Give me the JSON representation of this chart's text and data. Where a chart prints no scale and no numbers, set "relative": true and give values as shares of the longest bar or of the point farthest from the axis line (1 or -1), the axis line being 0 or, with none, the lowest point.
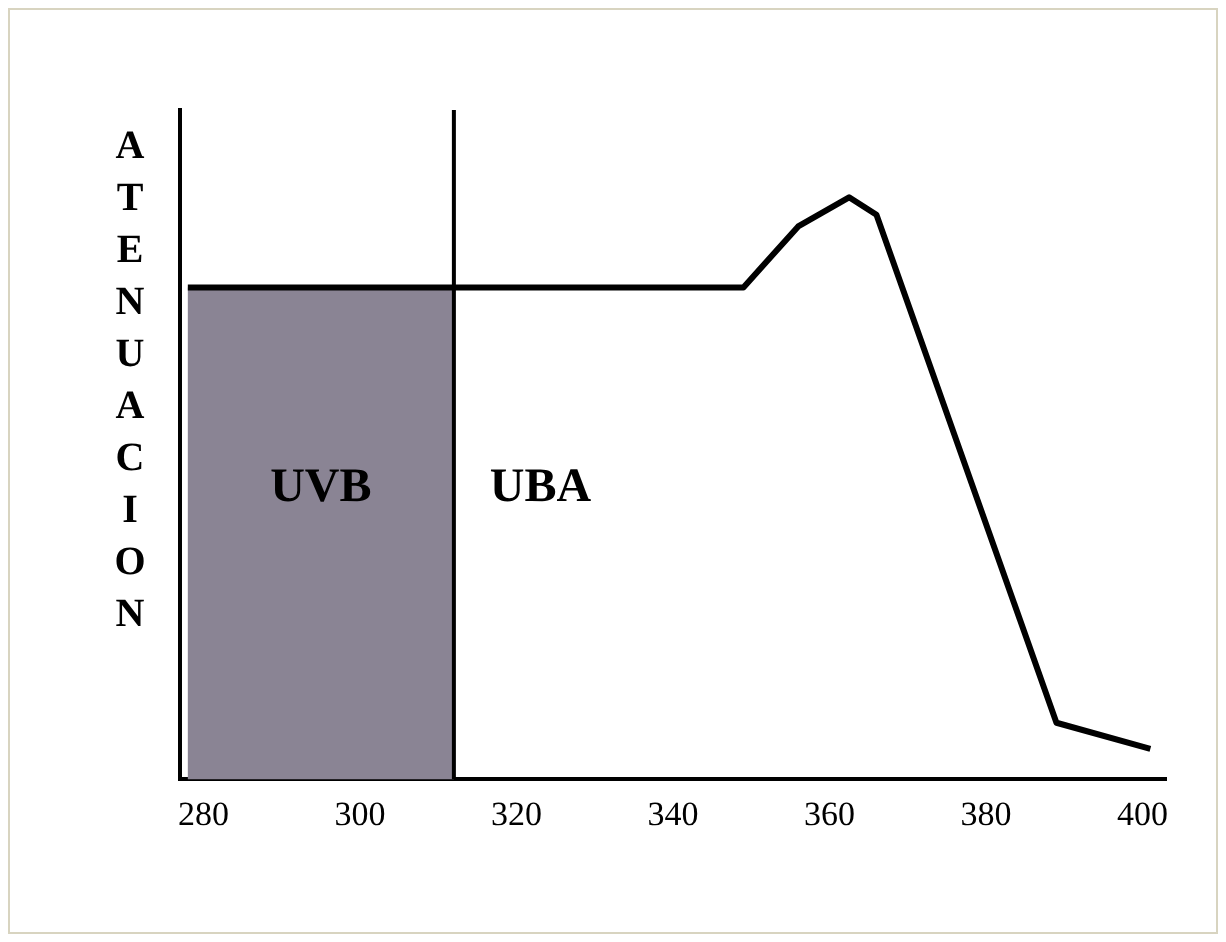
{
  "chart_data": {
    "type": "line",
    "ylabel": "ATENUACION",
    "relative": true,
    "x": [
      278,
      349,
      356,
      362.5,
      366,
      389,
      401
    ],
    "series": [
      {
        "color": "#000000",
        "values": [
          0.845,
          0.845,
          0.95,
          1,
          0.97,
          0.097,
          0.052
        ]
      }
    ],
    "xlim": [
      277,
      403
    ],
    "xticks": [
      280,
      300,
      320,
      340,
      360,
      380,
      400
    ],
    "grid": false,
    "legend": false,
    "marker": "none",
    "line_style": "solid",
    "bands": [
      {
        "axis": "x",
        "from": 278,
        "to": 312,
        "label": "UVB",
        "color": "#8a8494"
      }
    ],
    "ref_lines": [
      {
        "axis": "x",
        "value": 312,
        "color": "#000000"
      }
    ],
    "annotations": [
      "UBA"
    ]
  }
}
